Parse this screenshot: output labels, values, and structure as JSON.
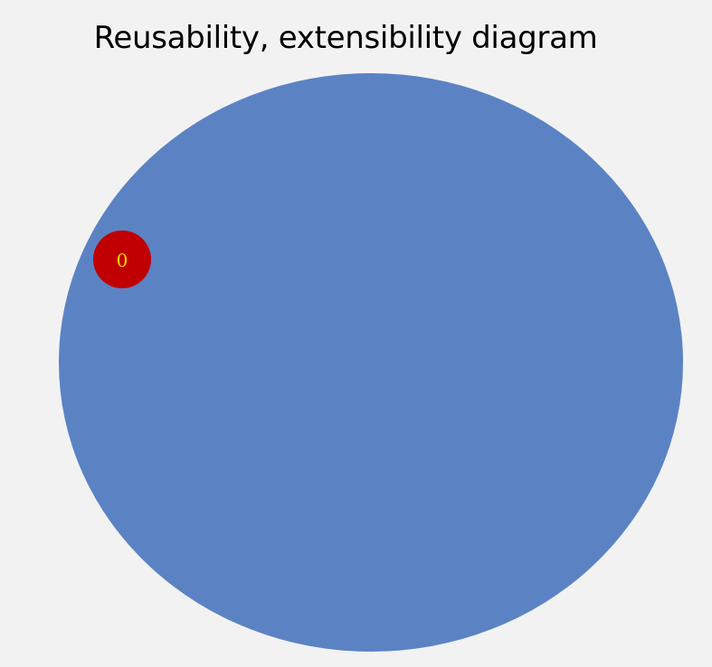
{
  "title": "Reusability, extensibility diagram",
  "colors": {
    "background": "#f2f2f3",
    "outer_circle": "#5b83c4",
    "marker_fill": "#c00000",
    "marker_text": "#ffd700"
  },
  "nodes": [
    {
      "label": "0"
    }
  ]
}
